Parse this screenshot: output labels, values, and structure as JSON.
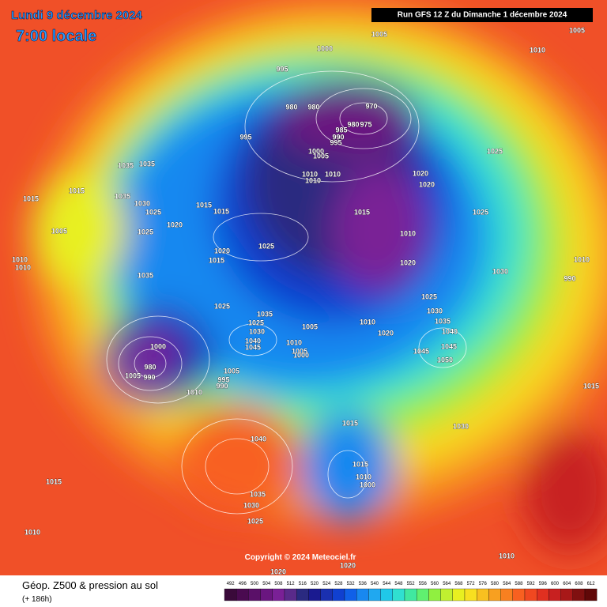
{
  "header": {
    "date": "Lundi 9 décembre 2024",
    "time": "7:00 locale",
    "run": "Run GFS 12 Z du Dimanche 1 décembre 2024"
  },
  "copyright": "Copyright © 2024 Meteociel.fr",
  "footer": {
    "title": "Géop. Z500 & pression au sol",
    "lead": "(+ 186h)"
  },
  "scale": {
    "values": [
      492,
      496,
      500,
      504,
      508,
      512,
      516,
      520,
      524,
      528,
      532,
      536,
      540,
      544,
      548,
      552,
      556,
      560,
      564,
      568,
      572,
      576,
      580,
      584,
      588,
      592,
      596,
      600,
      604,
      608,
      612
    ],
    "colors": [
      "#3a0a3a",
      "#4a0a50",
      "#5a1068",
      "#6a1680",
      "#7a2096",
      "#5a2a8a",
      "#2a2a80",
      "#1a1a90",
      "#1a30b0",
      "#1040d0",
      "#1060e8",
      "#1888f0",
      "#20a8f0",
      "#20c8e8",
      "#30e0d0",
      "#40e8a0",
      "#60f070",
      "#90f040",
      "#c0f030",
      "#e8f020",
      "#f8e020",
      "#f8c020",
      "#f8a020",
      "#f88020",
      "#f86020",
      "#f04820",
      "#e03020",
      "#c82020",
      "#a81818",
      "#801010",
      "#600808"
    ]
  },
  "isobar_labels": [
    1005,
    1005,
    1000,
    1010,
    995,
    980,
    980,
    970,
    985,
    975,
    980,
    990,
    995,
    995,
    1000,
    1005,
    1010,
    1010,
    1010,
    1020,
    1020,
    1025,
    1035,
    1035,
    1015,
    1015,
    1035,
    1030,
    1025,
    1015,
    1015,
    1015,
    1025,
    1025,
    1020,
    1005,
    1010,
    1020,
    1015,
    1025,
    1010,
    1010,
    1020,
    1030,
    990,
    1010,
    1035,
    1025,
    1030,
    1035,
    1040,
    1025,
    1035,
    1025,
    1005,
    1010,
    1020,
    1030,
    1040,
    1045,
    1010,
    1005,
    1000,
    1045,
    1045,
    1050,
    1000,
    980,
    990,
    1005,
    1005,
    995,
    990,
    1010,
    1015,
    1015,
    1030,
    1040,
    1015,
    1015,
    1010,
    1000,
    1035,
    1030,
    1025,
    1010,
    1010,
    1020,
    1020
  ]
}
